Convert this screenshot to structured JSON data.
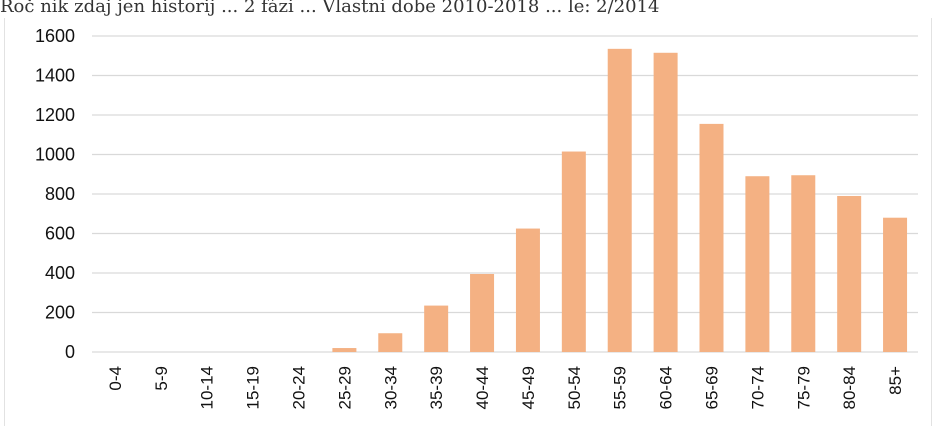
{
  "header": {
    "text": "Roč ník zdaj jen historij ... 2 fázi ... Vlastní dobe 2010-2018 ... le: 2/2014"
  },
  "chart_data": {
    "type": "bar",
    "title": "",
    "xlabel": "",
    "ylabel": "",
    "categories": [
      "0-4",
      "5-9",
      "10-14",
      "15-19",
      "20-24",
      "25-29",
      "30-34",
      "35-39",
      "40-44",
      "45-49",
      "50-54",
      "55-59",
      "60-64",
      "65-69",
      "70-74",
      "75-79",
      "80-84",
      "85+"
    ],
    "values": [
      0,
      0,
      0,
      0,
      0,
      20,
      95,
      235,
      395,
      625,
      1015,
      1535,
      1515,
      1155,
      890,
      895,
      790,
      680
    ],
    "ylim": [
      0,
      1600
    ],
    "yticks": [
      "0",
      "200",
      "400",
      "600",
      "800",
      "1000",
      "1200",
      "1400",
      "1600"
    ],
    "grid": true,
    "legend": "none",
    "bar_color": "#f4b183",
    "grid_color": "#d9d9d9"
  }
}
